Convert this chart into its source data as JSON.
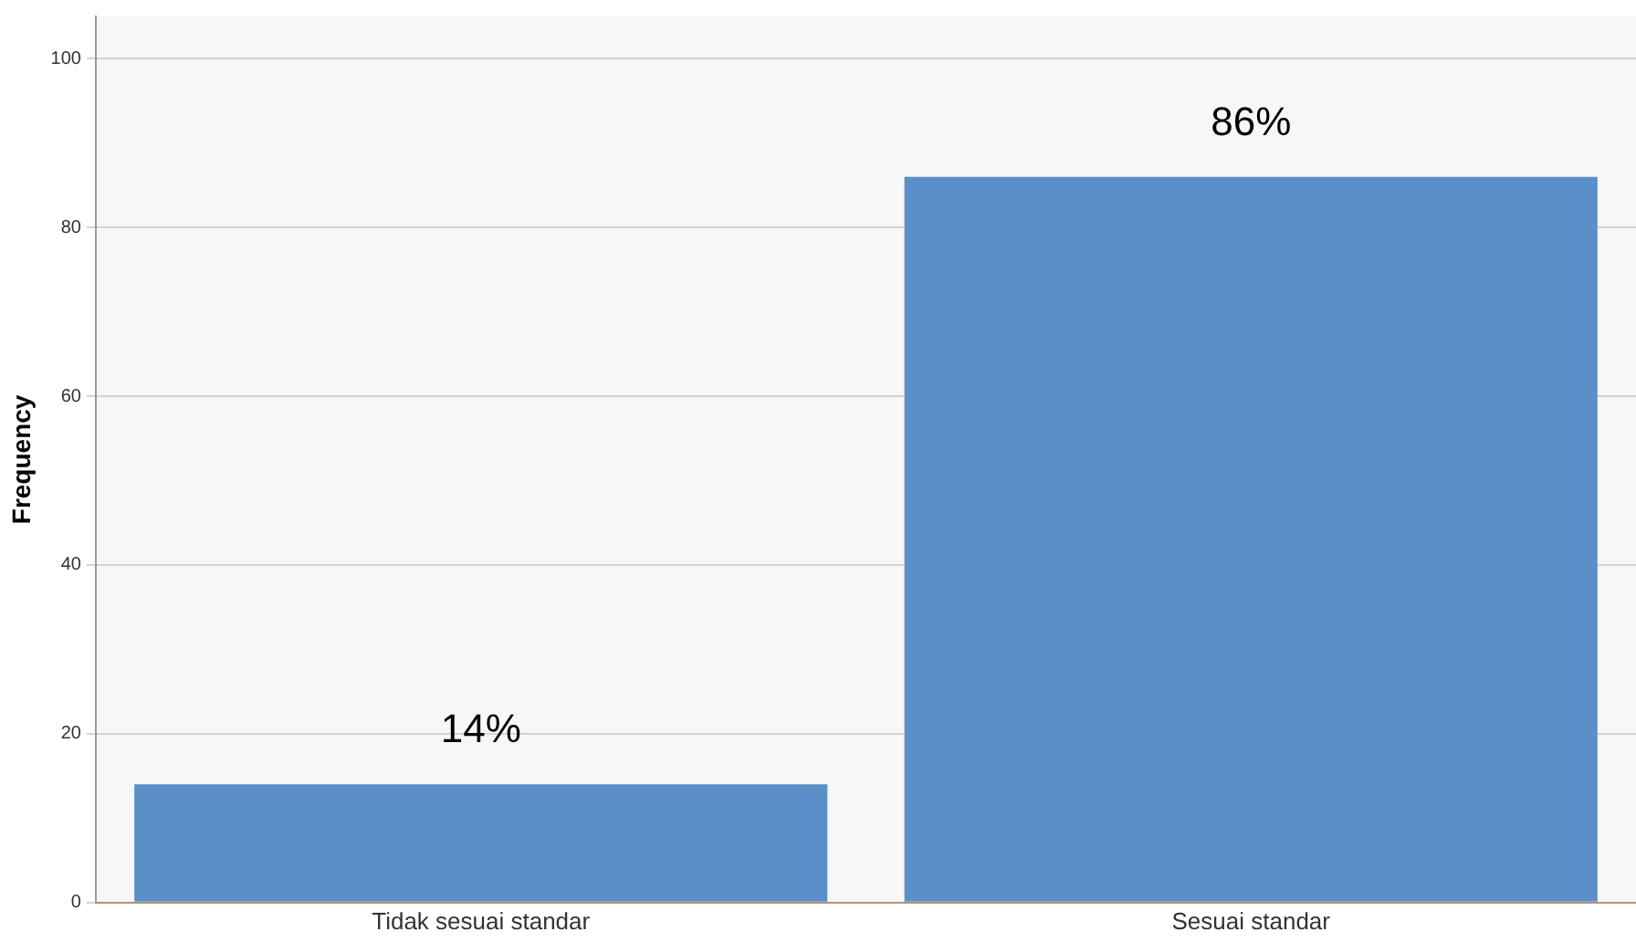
{
  "chart_data": {
    "type": "bar",
    "ylabel": "Frequency",
    "categories": [
      "Tidak sesuai standar",
      "Sesuai standar"
    ],
    "values": [
      14,
      86
    ],
    "color": "#5b8fc9",
    "value_labels": [
      "14%",
      "86%"
    ],
    "ylim": [
      0,
      105
    ],
    "yticks": [
      0,
      20,
      40,
      60,
      80,
      100
    ],
    "grid": "y",
    "legend": false
  }
}
